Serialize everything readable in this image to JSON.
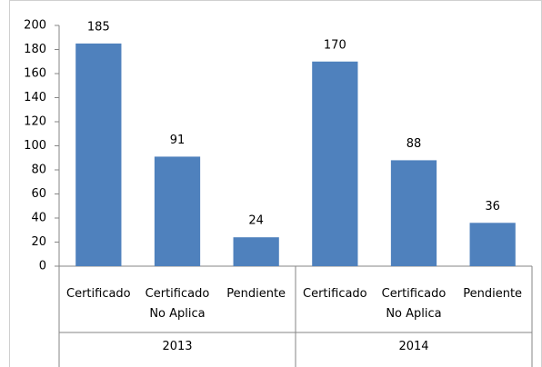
{
  "chart_data": {
    "type": "bar",
    "categories": [
      "Certificado",
      "Certificado No Aplica",
      "Pendiente",
      "Certificado",
      "Certificado No Aplica",
      "Pendiente"
    ],
    "group_labels": [
      "2013",
      "2014"
    ],
    "values": [
      185,
      91,
      24,
      170,
      88,
      36
    ],
    "color": "#4f81bd",
    "ylim": [
      0,
      200
    ],
    "yticks": [
      0,
      20,
      40,
      60,
      80,
      100,
      120,
      140,
      160,
      180,
      200
    ],
    "grid": false,
    "data_labels": true
  }
}
